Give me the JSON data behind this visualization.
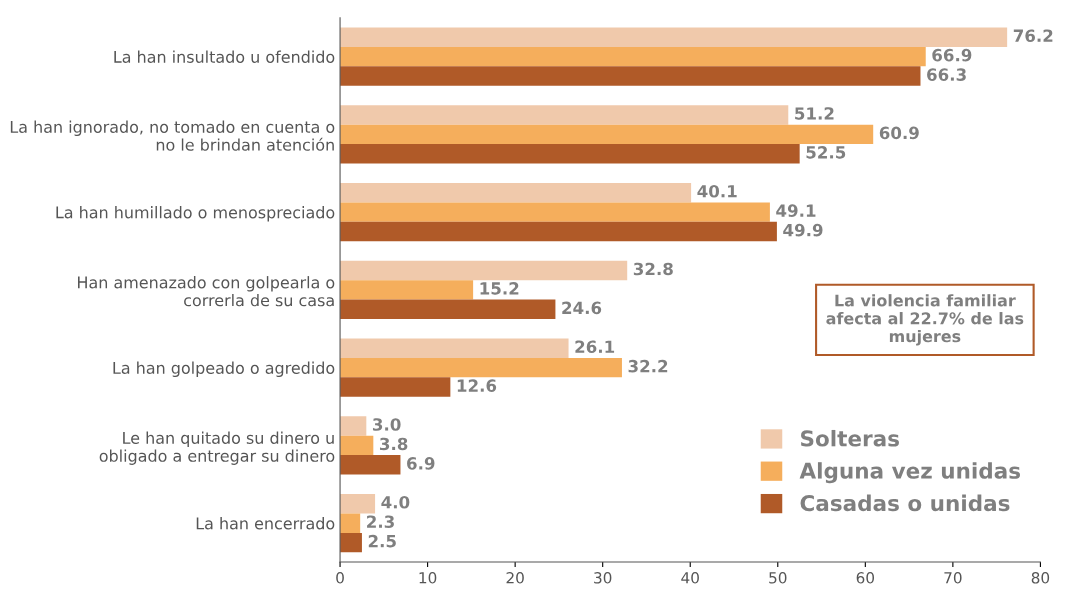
{
  "chart_data": {
    "type": "bar",
    "orientation": "horizontal",
    "categories": [
      "La han insultado u ofendido",
      "La han ignorado, no tomado en cuenta o\nno le brindan atención",
      "La han humillado o menospreciado",
      "Han amenazado con golpearla o\ncorrerla de su casa",
      "La han golpeado o agredido",
      "Le han quitado su dinero u\nobligado a entregar su dinero",
      "La han encerrado"
    ],
    "series": [
      {
        "name": "Solteras",
        "color": "#f0c9ab",
        "values": [
          76.2,
          51.2,
          40.1,
          32.8,
          26.1,
          3.0,
          4.0
        ],
        "value_labels": [
          "76.2",
          "51.2",
          "40.1",
          "32.8",
          "26.1",
          "3.0",
          "4.0"
        ]
      },
      {
        "name": "Alguna vez unidas",
        "color": "#f5ae5c",
        "values": [
          66.9,
          60.9,
          49.1,
          15.2,
          32.2,
          3.8,
          2.3
        ],
        "value_labels": [
          "66.9",
          "60.9",
          "49.1",
          "15.2",
          "32.2",
          "3.8",
          "2.3"
        ]
      },
      {
        "name": "Casadas o unidas",
        "color": "#b05a28",
        "values": [
          66.3,
          52.5,
          49.9,
          24.6,
          12.6,
          6.9,
          2.5
        ],
        "value_labels": [
          "66.3",
          "52.5",
          "49.9",
          "24.6",
          "12.6",
          "6.9",
          "2.5"
        ]
      }
    ],
    "xlim": [
      0,
      80
    ],
    "xticks": [
      0,
      10,
      20,
      30,
      40,
      50,
      60,
      70,
      80
    ],
    "grid": false,
    "legend": "bottom right",
    "annotations": [
      "La violencia familiar\nafecta al 22.7% de las\nmujeres"
    ]
  }
}
